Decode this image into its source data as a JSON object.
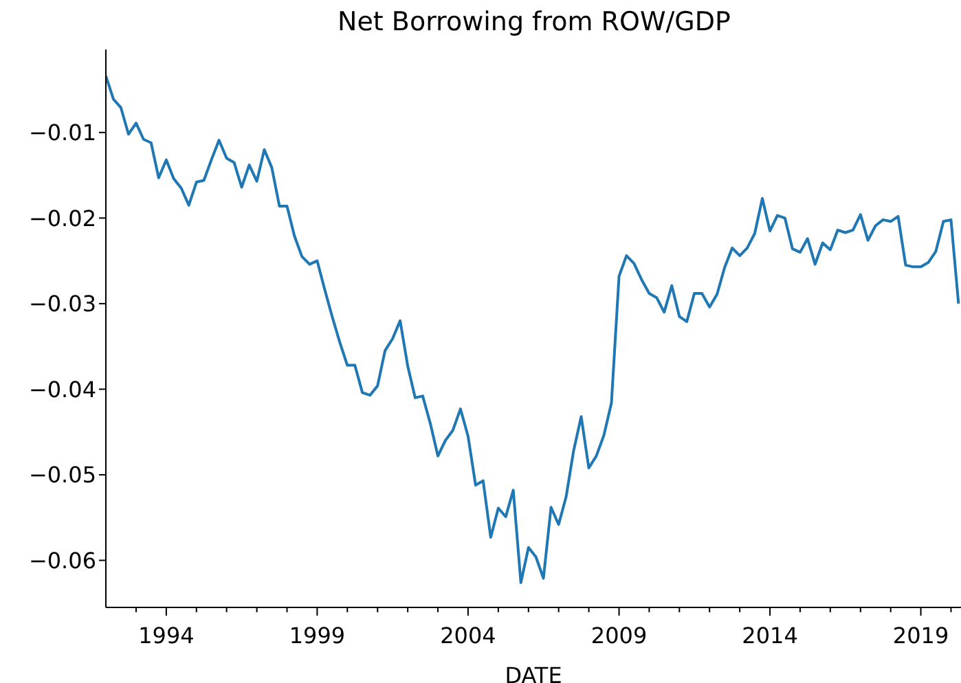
{
  "chart_data": {
    "type": "line",
    "title": "Net Borrowing from ROW/GDP",
    "xlabel": "DATE",
    "x": [
      "1992-01",
      "1992-04",
      "1992-07",
      "1992-10",
      "1993-01",
      "1993-04",
      "1993-07",
      "1993-10",
      "1994-01",
      "1994-04",
      "1994-07",
      "1994-10",
      "1995-01",
      "1995-04",
      "1995-07",
      "1995-10",
      "1996-01",
      "1996-04",
      "1996-07",
      "1996-10",
      "1997-01",
      "1997-04",
      "1997-07",
      "1997-10",
      "1998-01",
      "1998-04",
      "1998-07",
      "1998-10",
      "1999-01",
      "1999-04",
      "1999-07",
      "1999-10",
      "2000-01",
      "2000-04",
      "2000-07",
      "2000-10",
      "2001-01",
      "2001-04",
      "2001-07",
      "2001-10",
      "2002-01",
      "2002-04",
      "2002-07",
      "2002-10",
      "2003-01",
      "2003-04",
      "2003-07",
      "2003-10",
      "2004-01",
      "2004-04",
      "2004-07",
      "2004-10",
      "2005-01",
      "2005-04",
      "2005-07",
      "2005-10",
      "2006-01",
      "2006-04",
      "2006-07",
      "2006-10",
      "2007-01",
      "2007-04",
      "2007-07",
      "2007-10",
      "2008-01",
      "2008-04",
      "2008-07",
      "2008-10",
      "2009-01",
      "2009-04",
      "2009-07",
      "2009-10",
      "2010-01",
      "2010-04",
      "2010-07",
      "2010-10",
      "2011-01",
      "2011-04",
      "2011-07",
      "2011-10",
      "2012-01",
      "2012-04",
      "2012-07",
      "2012-10",
      "2013-01",
      "2013-04",
      "2013-07",
      "2013-10",
      "2014-01",
      "2014-04",
      "2014-07",
      "2014-10",
      "2015-01",
      "2015-04",
      "2015-07",
      "2015-10",
      "2016-01",
      "2016-04",
      "2016-07",
      "2016-10",
      "2017-01",
      "2017-04",
      "2017-07",
      "2017-10",
      "2018-01",
      "2018-04",
      "2018-07",
      "2018-10",
      "2019-01",
      "2019-04",
      "2019-07",
      "2019-10",
      "2020-01",
      "2020-04"
    ],
    "series": [
      {
        "color": "#1f77b4",
        "values": [
          -0.0034,
          -0.0061,
          -0.0071,
          -0.0102,
          -0.0089,
          -0.0108,
          -0.0112,
          -0.0153,
          -0.0132,
          -0.0154,
          -0.0165,
          -0.0185,
          -0.0158,
          -0.0156,
          -0.0132,
          -0.0109,
          -0.013,
          -0.0135,
          -0.0164,
          -0.0138,
          -0.0157,
          -0.012,
          -0.0141,
          -0.0186,
          -0.0186,
          -0.0221,
          -0.0245,
          -0.0254,
          -0.025,
          -0.0283,
          -0.0315,
          -0.0345,
          -0.0372,
          -0.0372,
          -0.0404,
          -0.0407,
          -0.0396,
          -0.0355,
          -0.0341,
          -0.032,
          -0.0373,
          -0.041,
          -0.0408,
          -0.044,
          -0.0478,
          -0.046,
          -0.0448,
          -0.0423,
          -0.0455,
          -0.0512,
          -0.0507,
          -0.0573,
          -0.0539,
          -0.0549,
          -0.0518,
          -0.0626,
          -0.0585,
          -0.0596,
          -0.0621,
          -0.0538,
          -0.0558,
          -0.0526,
          -0.0472,
          -0.0432,
          -0.0492,
          -0.0478,
          -0.0454,
          -0.0416,
          -0.0268,
          -0.0244,
          -0.0253,
          -0.0272,
          -0.0288,
          -0.0293,
          -0.031,
          -0.0279,
          -0.0315,
          -0.0321,
          -0.0288,
          -0.0288,
          -0.0304,
          -0.0289,
          -0.0258,
          -0.0235,
          -0.0244,
          -0.0235,
          -0.0218,
          -0.0177,
          -0.0215,
          -0.0197,
          -0.02,
          -0.0236,
          -0.024,
          -0.0224,
          -0.0254,
          -0.0229,
          -0.0237,
          -0.0214,
          -0.0217,
          -0.0214,
          -0.0196,
          -0.0226,
          -0.0209,
          -0.0202,
          -0.0204,
          -0.0198,
          -0.0255,
          -0.0257,
          -0.0257,
          -0.0252,
          -0.0239,
          -0.0204,
          -0.0202,
          -0.03
        ]
      }
    ],
    "xlim": [
      "1992-01",
      "2020-05"
    ],
    "xticks": [
      {
        "value": "1993",
        "label": null
      },
      {
        "value": "1994",
        "label": "1994"
      },
      {
        "value": "1995",
        "label": null
      },
      {
        "value": "1996",
        "label": null
      },
      {
        "value": "1997",
        "label": null
      },
      {
        "value": "1998",
        "label": null
      },
      {
        "value": "1999",
        "label": "1999"
      },
      {
        "value": "2000",
        "label": null
      },
      {
        "value": "2001",
        "label": null
      },
      {
        "value": "2002",
        "label": null
      },
      {
        "value": "2003",
        "label": null
      },
      {
        "value": "2004",
        "label": "2004"
      },
      {
        "value": "2005",
        "label": null
      },
      {
        "value": "2006",
        "label": null
      },
      {
        "value": "2007",
        "label": null
      },
      {
        "value": "2008",
        "label": null
      },
      {
        "value": "2009",
        "label": "2009"
      },
      {
        "value": "2010",
        "label": null
      },
      {
        "value": "2011",
        "label": null
      },
      {
        "value": "2012",
        "label": null
      },
      {
        "value": "2013",
        "label": null
      },
      {
        "value": "2014",
        "label": "2014"
      },
      {
        "value": "2015",
        "label": null
      },
      {
        "value": "2016",
        "label": null
      },
      {
        "value": "2017",
        "label": null
      },
      {
        "value": "2018",
        "label": null
      },
      {
        "value": "2019",
        "label": "2019"
      },
      {
        "value": "2020",
        "label": null
      }
    ],
    "ylim": [
      -0.0655,
      -0.0003
    ],
    "yticks": [
      {
        "value": -0.01,
        "label": "−0.01"
      },
      {
        "value": -0.02,
        "label": "−0.02"
      },
      {
        "value": -0.03,
        "label": "−0.03"
      },
      {
        "value": -0.04,
        "label": "−0.04"
      },
      {
        "value": -0.05,
        "label": "−0.05"
      },
      {
        "value": -0.06,
        "label": "−0.06"
      }
    ],
    "grid": false,
    "legend": false,
    "marker": "none",
    "line_style": "solid"
  }
}
